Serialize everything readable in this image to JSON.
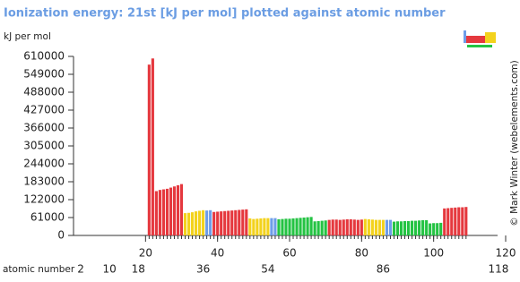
{
  "chart_data": {
    "type": "bar",
    "title": "Ionization energy: 21st [kJ per mol] plotted against atomic number",
    "y_label": "kJ per mol",
    "x_label": "atomic number",
    "credit": "© Mark Winter (webelements.com)",
    "xlim": [
      0,
      120
    ],
    "xticks": [
      20,
      40,
      60,
      80,
      100,
      120
    ],
    "period_ticks": [
      2,
      10,
      18,
      36,
      54,
      86,
      118
    ],
    "ylim": [
      0,
      610000
    ],
    "yticks": [
      0,
      61000,
      122000,
      183000,
      244000,
      305000,
      366000,
      427000,
      488000,
      549000,
      610000
    ],
    "grid": false,
    "series": [
      {
        "color": "#e5383e",
        "x": [
          21,
          22,
          23,
          24,
          25,
          26,
          27,
          28,
          29,
          30,
          39,
          40,
          41,
          42,
          43,
          44,
          45,
          46,
          47,
          48,
          71,
          72,
          73,
          74,
          75,
          76,
          77,
          78,
          79,
          80,
          103,
          104,
          105,
          106,
          107,
          108,
          109
        ],
        "values": [
          582000,
          603000,
          151000,
          155000,
          157000,
          159000,
          163000,
          167000,
          171000,
          175000,
          80000,
          81000,
          82000,
          83000,
          84000,
          85000,
          86000,
          87000,
          88000,
          89000,
          53000,
          54000,
          54000,
          53000,
          54000,
          55000,
          55000,
          54000,
          53000,
          54000,
          92000,
          93000,
          94000,
          95000,
          96000,
          96000,
          97000
        ]
      },
      {
        "color": "#f3d21c",
        "x": [
          31,
          32,
          33,
          34,
          35,
          36,
          49,
          50,
          51,
          52,
          53,
          54,
          81,
          82,
          83,
          84,
          85,
          86
        ],
        "values": [
          76000,
          77000,
          79000,
          82000,
          84000,
          86000,
          58000,
          56000,
          57000,
          58000,
          59000,
          59000,
          56000,
          55000,
          54000,
          53000,
          53000,
          53000
        ]
      },
      {
        "color": "#6e9de8",
        "x": [
          37,
          38,
          55,
          56,
          87,
          88
        ],
        "values": [
          85000,
          86000,
          59000,
          59000,
          53000,
          53000
        ]
      },
      {
        "color": "#24c343",
        "x": [
          57,
          58,
          59,
          60,
          61,
          62,
          63,
          64,
          65,
          66,
          67,
          68,
          69,
          70,
          89,
          90,
          91,
          92,
          93,
          94,
          95,
          96,
          97,
          98,
          99,
          100,
          101,
          102
        ],
        "values": [
          55000,
          56000,
          57000,
          57000,
          58000,
          59000,
          60000,
          61000,
          62000,
          63000,
          48000,
          49000,
          50000,
          51000,
          47000,
          48000,
          48000,
          49000,
          49000,
          50000,
          50000,
          51000,
          52000,
          52000,
          41000,
          42000,
          42000,
          43000
        ]
      }
    ]
  }
}
